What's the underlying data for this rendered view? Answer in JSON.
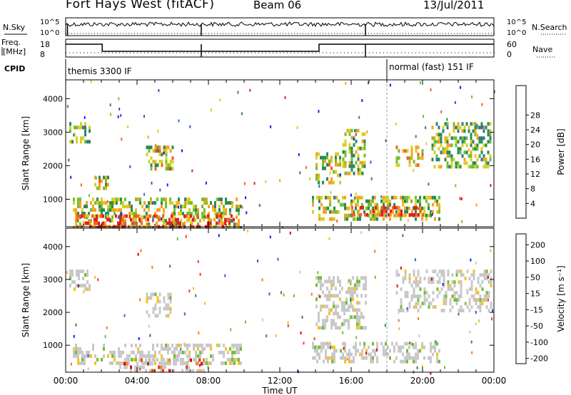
{
  "header": {
    "radar": "Fort Hays West (fitACF)",
    "beam": "Beam 06",
    "date": "13/Jul/2011"
  },
  "strips": {
    "nsky_label": "N.Sky",
    "nsearch_label": "N.Search",
    "nsky_ticks": [
      "10^5",
      "10^0"
    ],
    "freq_label_1": "Freq.",
    "freq_label_2": "[MHz]",
    "freq_ticks": [
      "18",
      "8"
    ],
    "nave_label": "Nave",
    "nave_ticks": [
      "60",
      "0"
    ],
    "cpid_label": "CPID",
    "cpid_segments": [
      {
        "label": "themis 3300 IF",
        "start_hour": 0
      },
      {
        "label": "normal (fast) 151 IF",
        "start_hour": 18
      }
    ]
  },
  "chart_data": [
    {
      "type": "heatmap",
      "name": "power",
      "xlabel": "",
      "ylabel": "Slant Range [km]",
      "xlim": [
        0,
        24
      ],
      "ylim": [
        180,
        4560
      ],
      "y_ticks": [
        1000,
        2000,
        3000,
        4000
      ],
      "colorbar": {
        "label": "Power [dB]",
        "ticks": [
          "4",
          "8",
          "12",
          "16",
          "20",
          "24",
          "28"
        ],
        "colors": [
          "#1a1aff",
          "#4050c8",
          "#2e7a8c",
          "#2e8a50",
          "#70c030",
          "#d8d020",
          "#f8a020",
          "#f06020",
          "#e02020"
        ]
      },
      "regions": [
        {
          "t0": 0.4,
          "t1": 9.8,
          "r0": 180,
          "r1": 1050,
          "level": 0.55
        },
        {
          "t0": 0.6,
          "t1": 9.5,
          "r0": 180,
          "r1": 550,
          "level": 0.9
        },
        {
          "t0": 13.8,
          "t1": 21.0,
          "r0": 450,
          "r1": 1100,
          "level": 0.55
        },
        {
          "t0": 16.0,
          "t1": 20.0,
          "r0": 500,
          "r1": 800,
          "level": 0.9
        },
        {
          "t0": 0.2,
          "t1": 1.4,
          "r0": 2700,
          "r1": 3300,
          "level": 0.45
        },
        {
          "t0": 1.6,
          "t1": 2.4,
          "r0": 1300,
          "r1": 1700,
          "level": 0.6
        },
        {
          "t0": 4.5,
          "t1": 6.0,
          "r0": 1900,
          "r1": 2600,
          "level": 0.6
        },
        {
          "t0": 14.0,
          "t1": 15.4,
          "r0": 1500,
          "r1": 2400,
          "level": 0.6
        },
        {
          "t0": 15.5,
          "t1": 16.8,
          "r0": 1800,
          "r1": 3100,
          "level": 0.55
        },
        {
          "t0": 18.5,
          "t1": 20.0,
          "r0": 2000,
          "r1": 2600,
          "level": 0.65
        },
        {
          "t0": 20.5,
          "t1": 23.8,
          "r0": 2000,
          "r1": 3300,
          "level": 0.5
        }
      ]
    },
    {
      "type": "heatmap",
      "name": "velocity",
      "xlabel": "Time UT",
      "ylabel": "Slant Range [km]",
      "xlim": [
        0,
        24
      ],
      "ylim": [
        180,
        4560
      ],
      "x_ticks": [
        "00:00",
        "04:00",
        "08:00",
        "12:00",
        "16:00",
        "20:00",
        "00:00"
      ],
      "y_ticks": [
        1000,
        2000,
        3000,
        4000
      ],
      "colorbar": {
        "label": "Velocity [m s⁻¹]",
        "ticks": [
          "200",
          "100",
          "50",
          "15",
          "-15",
          "-50",
          "-100",
          "-200"
        ],
        "colors": [
          "#1a1aff",
          "#3060c0",
          "#2e8a50",
          "#70c030",
          "#c8c8c8",
          "#f8c020",
          "#f08020",
          "#f04020",
          "#e00000"
        ]
      },
      "regions": [
        {
          "t0": 0.4,
          "t1": 9.8,
          "r0": 400,
          "r1": 1050,
          "level": 0.5
        },
        {
          "t0": 3.0,
          "t1": 8.0,
          "r0": 180,
          "r1": 600,
          "level": 0.85
        },
        {
          "t0": 13.8,
          "t1": 21.0,
          "r0": 450,
          "r1": 1100,
          "level": 0.5
        },
        {
          "t0": 0.2,
          "t1": 1.4,
          "r0": 2700,
          "r1": 3300,
          "level": 0.5
        },
        {
          "t0": 4.5,
          "t1": 6.0,
          "r0": 1900,
          "r1": 2600,
          "level": 0.5
        },
        {
          "t0": 14.0,
          "t1": 16.8,
          "r0": 1500,
          "r1": 3100,
          "level": 0.5
        },
        {
          "t0": 18.5,
          "t1": 23.8,
          "r0": 2000,
          "r1": 3300,
          "level": 0.5
        }
      ]
    }
  ]
}
